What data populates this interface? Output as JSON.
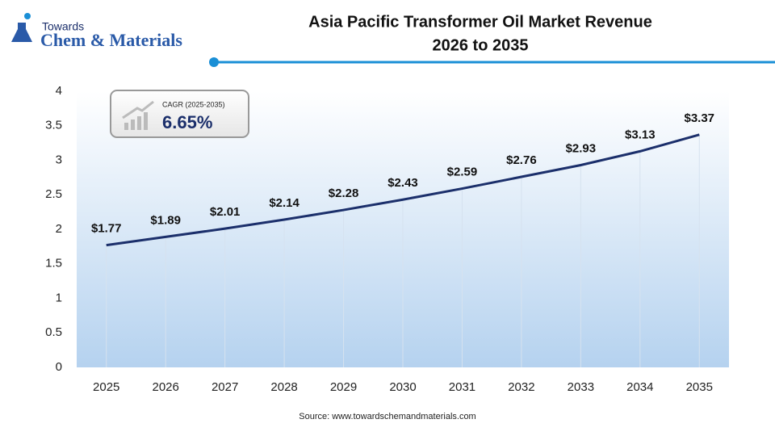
{
  "logo": {
    "top": "Towards",
    "main": "Chem & Materials"
  },
  "chart_data": {
    "type": "line",
    "title": "Asia Pacific Transformer Oil Market Revenue",
    "subtitle": "2026 to 2035",
    "categories": [
      "2025",
      "2026",
      "2027",
      "2028",
      "2029",
      "2030",
      "2031",
      "2032",
      "2033",
      "2034",
      "2035"
    ],
    "series": [
      {
        "name": "Revenue",
        "color": "#1b2f6b",
        "values": [
          1.77,
          1.89,
          2.01,
          2.14,
          2.28,
          2.43,
          2.59,
          2.76,
          2.93,
          3.13,
          3.37
        ],
        "value_labels": [
          "$1.77",
          "$1.89",
          "$2.01",
          "$2.14",
          "$2.28",
          "$2.43",
          "$2.59",
          "$2.76",
          "$2.93",
          "$3.13",
          "$3.37"
        ]
      }
    ],
    "ylim": [
      0,
      4
    ],
    "yticks": [
      0,
      0.5,
      1,
      1.5,
      2,
      2.5,
      3,
      3.5,
      4
    ],
    "annotations": {
      "cagr_label": "CAGR (2025-2035)",
      "cagr_value": "6.65%"
    },
    "source": "Source: www.towardschemandmaterials.com"
  }
}
